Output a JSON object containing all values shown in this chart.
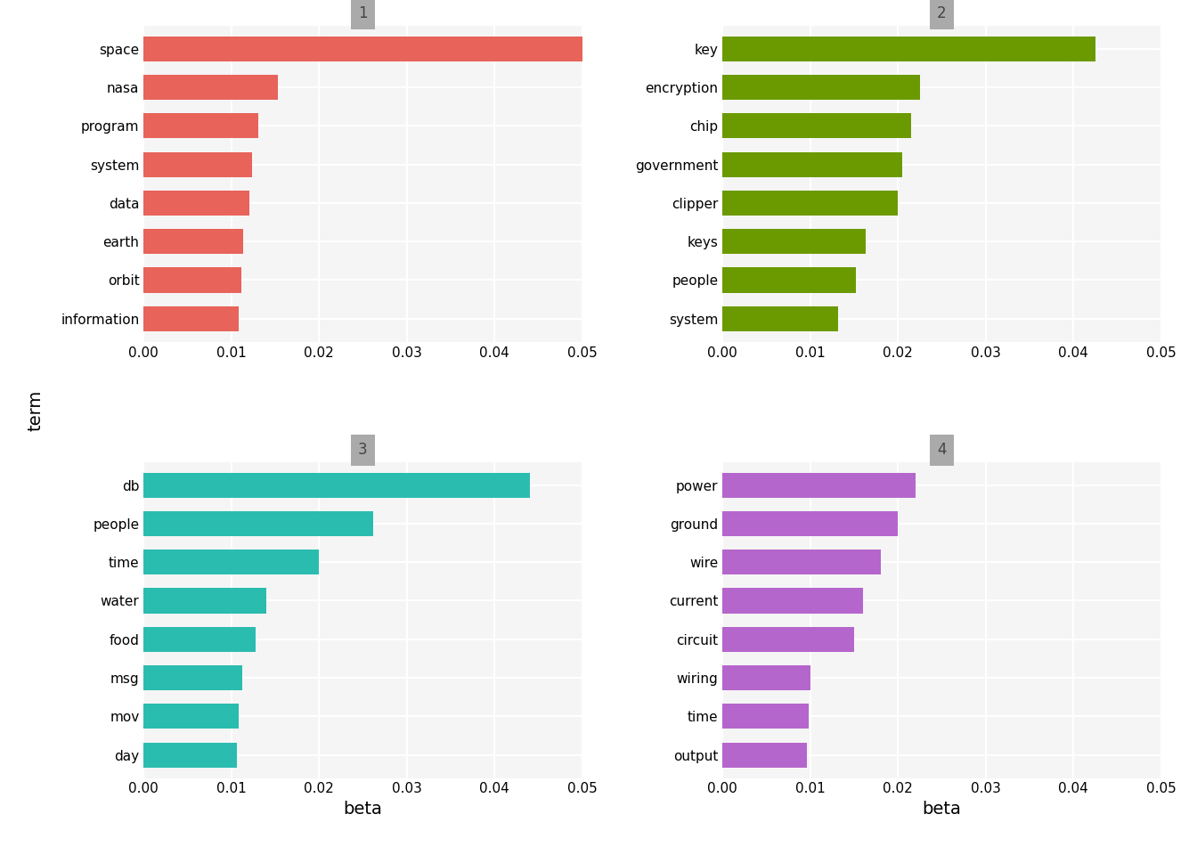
{
  "topics": [
    {
      "id": "1",
      "color": "#E8635A",
      "terms": [
        "space",
        "nasa",
        "program",
        "system",
        "data",
        "earth",
        "orbit",
        "information"
      ],
      "values": [
        0.0502,
        0.0153,
        0.0131,
        0.0124,
        0.0121,
        0.0113,
        0.0111,
        0.0108
      ]
    },
    {
      "id": "2",
      "color": "#6B9A00",
      "terms": [
        "key",
        "encryption",
        "chip",
        "government",
        "clipper",
        "keys",
        "people",
        "system"
      ],
      "values": [
        0.0425,
        0.0225,
        0.0215,
        0.0205,
        0.02,
        0.0163,
        0.0152,
        0.0132
      ]
    },
    {
      "id": "3",
      "color": "#2BBCB0",
      "terms": [
        "db",
        "people",
        "time",
        "water",
        "food",
        "msg",
        "mov",
        "day"
      ],
      "values": [
        0.044,
        0.0262,
        0.02,
        0.014,
        0.0128,
        0.0112,
        0.0108,
        0.0106
      ]
    },
    {
      "id": "4",
      "color": "#B566CC",
      "terms": [
        "power",
        "ground",
        "wire",
        "current",
        "circuit",
        "wiring",
        "time",
        "output"
      ],
      "values": [
        0.022,
        0.02,
        0.018,
        0.016,
        0.015,
        0.01,
        0.0098,
        0.0096
      ]
    }
  ],
  "xlim": [
    0,
    0.05
  ],
  "xticks": [
    0.0,
    0.01,
    0.02,
    0.03,
    0.04,
    0.05
  ],
  "xlabel": "beta",
  "ylabel": "term",
  "tick_fontsize": 11,
  "label_fontsize": 14,
  "title_fontsize": 12,
  "panel_bg_color": "#f5f5f5",
  "grid_color": "#ffffff",
  "header_color": "#aaaaaa",
  "bar_height": 0.65,
  "figure_bg_color": "#ffffff"
}
